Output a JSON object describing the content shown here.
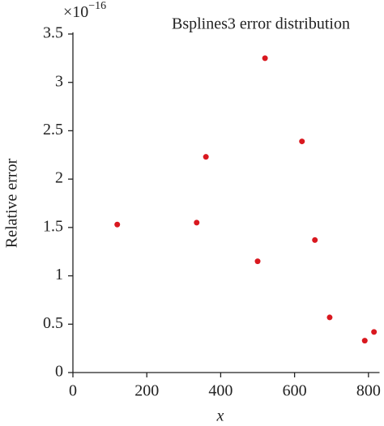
{
  "chart_data": {
    "type": "scatter",
    "title": "Bsplines3 error distribution",
    "x_label": "x",
    "y_label": "Relative error",
    "y_multiplier": {
      "base": "×10",
      "exponent": "−16"
    },
    "x": [
      120,
      335,
      360,
      520,
      500,
      620,
      655,
      695,
      790,
      815
    ],
    "values": [
      1.53,
      1.55,
      2.23,
      3.25,
      1.15,
      2.39,
      1.37,
      0.57,
      0.33,
      0.42
    ],
    "color": "#d9181f",
    "xlim": [
      0,
      830
    ],
    "xticks": [
      0,
      200,
      400,
      600,
      800
    ],
    "ylim": [
      0,
      3.5
    ],
    "yticks": [
      0,
      0.5,
      1,
      1.5,
      2,
      2.5,
      3,
      3.5
    ]
  }
}
